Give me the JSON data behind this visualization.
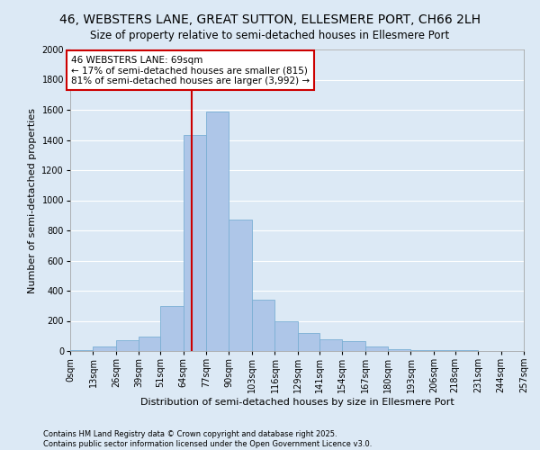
{
  "title": "46, WEBSTERS LANE, GREAT SUTTON, ELLESMERE PORT, CH66 2LH",
  "subtitle": "Size of property relative to semi-detached houses in Ellesmere Port",
  "xlabel": "Distribution of semi-detached houses by size in Ellesmere Port",
  "ylabel": "Number of semi-detached properties",
  "footnote1": "Contains HM Land Registry data © Crown copyright and database right 2025.",
  "footnote2": "Contains public sector information licensed under the Open Government Licence v3.0.",
  "bin_edges": [
    0,
    13,
    26,
    39,
    51,
    64,
    77,
    90,
    103,
    116,
    129,
    141,
    154,
    167,
    180,
    193,
    206,
    218,
    231,
    244,
    257
  ],
  "bin_labels": [
    "0sqm",
    "13sqm",
    "26sqm",
    "39sqm",
    "51sqm",
    "64sqm",
    "77sqm",
    "90sqm",
    "103sqm",
    "116sqm",
    "129sqm",
    "141sqm",
    "154sqm",
    "167sqm",
    "180sqm",
    "193sqm",
    "206sqm",
    "218sqm",
    "231sqm",
    "244sqm",
    "257sqm"
  ],
  "counts": [
    5,
    30,
    70,
    95,
    300,
    1430,
    1590,
    870,
    340,
    195,
    120,
    75,
    65,
    30,
    10,
    5,
    5,
    3,
    2,
    1
  ],
  "bar_color": "#aec6e8",
  "bar_edge_color": "#7aafd4",
  "property_size": 69,
  "vline_color": "#cc0000",
  "annotation_title": "46 WEBSTERS LANE: 69sqm",
  "annotation_line1": "← 17% of semi-detached houses are smaller (815)",
  "annotation_line2": "81% of semi-detached houses are larger (3,992) →",
  "annotation_box_color": "#cc0000",
  "annotation_bg": "#ffffff",
  "ylim": [
    0,
    2000
  ],
  "background_color": "#dce9f5",
  "grid_color": "#ffffff",
  "title_fontsize": 10,
  "subtitle_fontsize": 8.5,
  "axis_label_fontsize": 8,
  "tick_fontsize": 7,
  "annotation_fontsize": 7.5,
  "footnote_fontsize": 6
}
